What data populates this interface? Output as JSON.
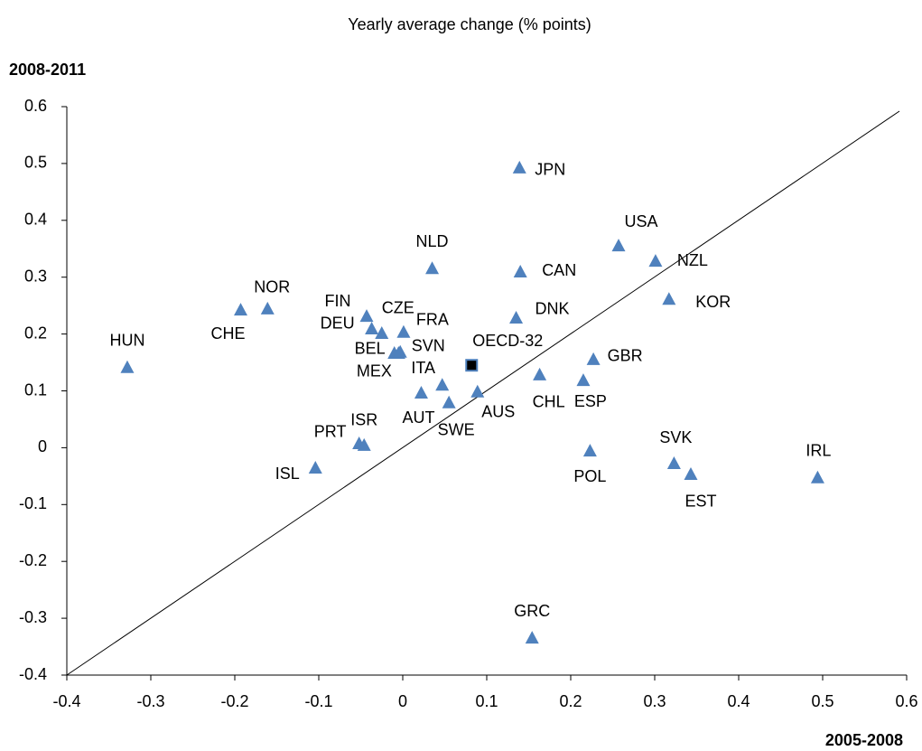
{
  "chart_data": {
    "type": "scatter",
    "title": "Yearly average change (% points)",
    "y_label": "2008-2011",
    "x_label": "2005-2008",
    "xlim": [
      -0.4,
      0.6
    ],
    "ylim": [
      -0.4,
      0.6
    ],
    "xticks": [
      -0.4,
      -0.3,
      -0.2,
      -0.1,
      0,
      0.1,
      0.2,
      0.3,
      0.4,
      0.5,
      0.6
    ],
    "yticks": [
      -0.4,
      -0.3,
      -0.2,
      -0.1,
      0,
      0.1,
      0.2,
      0.3,
      0.4,
      0.5,
      0.6
    ],
    "reference_line": "y=x",
    "marker_colors": {
      "triangle": "#4f81bd",
      "square": "#000000"
    },
    "points": [
      {
        "name": "HUN",
        "x": -0.328,
        "y": 0.141,
        "marker": "triangle"
      },
      {
        "name": "CHE",
        "x": -0.193,
        "y": 0.242,
        "marker": "triangle"
      },
      {
        "name": "NOR",
        "x": -0.161,
        "y": 0.244,
        "marker": "triangle"
      },
      {
        "name": "ISL",
        "x": -0.104,
        "y": -0.036,
        "marker": "triangle"
      },
      {
        "name": "PRT",
        "x": -0.052,
        "y": 0.007,
        "marker": "triangle"
      },
      {
        "name": "ISR",
        "x": -0.046,
        "y": 0.004,
        "marker": "triangle"
      },
      {
        "name": "FIN",
        "x": -0.043,
        "y": 0.231,
        "marker": "triangle"
      },
      {
        "name": "DEU",
        "x": -0.037,
        "y": 0.209,
        "marker": "triangle"
      },
      {
        "name": "CZE",
        "x": -0.025,
        "y": 0.201,
        "marker": "triangle"
      },
      {
        "name": "FRA",
        "x": 0.001,
        "y": 0.203,
        "marker": "triangle"
      },
      {
        "name": "BEL",
        "x": -0.01,
        "y": 0.166,
        "marker": "triangle"
      },
      {
        "name": "MEX",
        "x": -0.005,
        "y": 0.166,
        "marker": "triangle"
      },
      {
        "name": "SVN",
        "x": -0.003,
        "y": 0.168,
        "marker": "triangle"
      },
      {
        "name": "NLD",
        "x": 0.035,
        "y": 0.315,
        "marker": "triangle"
      },
      {
        "name": "AUT",
        "x": 0.022,
        "y": 0.096,
        "marker": "triangle"
      },
      {
        "name": "ITA",
        "x": 0.047,
        "y": 0.11,
        "marker": "triangle"
      },
      {
        "name": "SWE",
        "x": 0.055,
        "y": 0.079,
        "marker": "triangle"
      },
      {
        "name": "AUS",
        "x": 0.089,
        "y": 0.098,
        "marker": "triangle"
      },
      {
        "name": "OECD-32",
        "x": 0.082,
        "y": 0.145,
        "marker": "square"
      },
      {
        "name": "JPN",
        "x": 0.139,
        "y": 0.492,
        "marker": "triangle"
      },
      {
        "name": "CAN",
        "x": 0.14,
        "y": 0.309,
        "marker": "triangle"
      },
      {
        "name": "DNK",
        "x": 0.135,
        "y": 0.228,
        "marker": "triangle"
      },
      {
        "name": "CHL",
        "x": 0.163,
        "y": 0.128,
        "marker": "triangle"
      },
      {
        "name": "ESP",
        "x": 0.215,
        "y": 0.118,
        "marker": "triangle"
      },
      {
        "name": "GBR",
        "x": 0.227,
        "y": 0.155,
        "marker": "triangle"
      },
      {
        "name": "POL",
        "x": 0.223,
        "y": -0.006,
        "marker": "triangle"
      },
      {
        "name": "GRC",
        "x": 0.154,
        "y": -0.335,
        "marker": "triangle"
      },
      {
        "name": "USA",
        "x": 0.257,
        "y": 0.355,
        "marker": "triangle"
      },
      {
        "name": "NZL",
        "x": 0.301,
        "y": 0.328,
        "marker": "triangle"
      },
      {
        "name": "KOR",
        "x": 0.317,
        "y": 0.261,
        "marker": "triangle"
      },
      {
        "name": "SVK",
        "x": 0.323,
        "y": -0.028,
        "marker": "triangle"
      },
      {
        "name": "EST",
        "x": 0.343,
        "y": -0.047,
        "marker": "triangle"
      },
      {
        "name": "IRL",
        "x": 0.494,
        "y": -0.053,
        "marker": "triangle"
      }
    ]
  }
}
